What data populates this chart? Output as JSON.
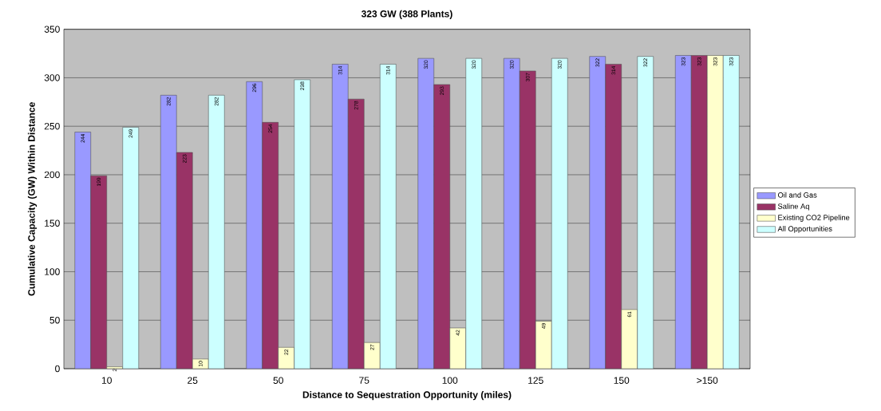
{
  "chart_data": {
    "type": "bar",
    "title": "323 GW (388 Plants)",
    "xlabel": "Distance to Sequestration Opportunity (miles)",
    "ylabel": "Cumulative Capacity (GW) Within Distance",
    "categories": [
      "10",
      "25",
      "50",
      "75",
      "100",
      "125",
      "150",
      ">150"
    ],
    "series": [
      {
        "name": "Oil and Gas",
        "color": "#9999ff",
        "values": [
          244,
          282,
          296,
          314,
          320,
          320,
          322,
          323
        ]
      },
      {
        "name": "Saline Aq",
        "color": "#993366",
        "values": [
          199,
          223,
          254,
          278,
          293,
          307,
          314,
          323
        ]
      },
      {
        "name": "Existing CO2 Pipeline",
        "color": "#ffffcc",
        "values": [
          2,
          10,
          22,
          27,
          42,
          49,
          61,
          323
        ]
      },
      {
        "name": "All Opportunities",
        "color": "#ccffff",
        "values": [
          249,
          282,
          298,
          314,
          320,
          320,
          322,
          323
        ]
      }
    ],
    "ylim": [
      0,
      350
    ],
    "yticks": [
      0,
      50,
      100,
      150,
      200,
      250,
      300,
      350
    ],
    "grid": "y",
    "legend": "right",
    "data_labels": true
  }
}
